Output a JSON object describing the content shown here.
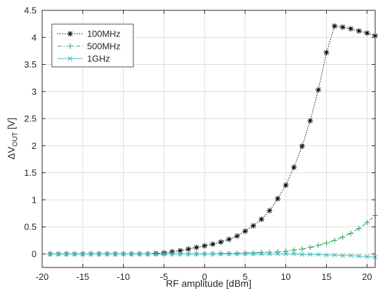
{
  "chart_data": {
    "type": "line",
    "xlabel": "RF amplitude [dBm]",
    "ylabel": {
      "prefix": "ΔV",
      "sub": "OUT",
      "suffix": " [V]"
    },
    "xlim": [
      -20,
      21
    ],
    "ylim": [
      -0.25,
      4.5
    ],
    "xticks": [
      -20,
      -15,
      -10,
      -5,
      0,
      5,
      10,
      15,
      20
    ],
    "yticks": [
      0,
      0.5,
      1,
      1.5,
      2,
      2.5,
      3,
      3.5,
      4,
      4.5
    ],
    "grid": true,
    "legend_position": "top-left",
    "x": [
      -19,
      -18,
      -17,
      -16,
      -15,
      -14,
      -13,
      -12,
      -11,
      -10,
      -9,
      -8,
      -7,
      -6,
      -5,
      -4,
      -3,
      -2,
      -1,
      0,
      1,
      2,
      3,
      4,
      5,
      6,
      7,
      8,
      9,
      10,
      11,
      12,
      13,
      14,
      15,
      16,
      17,
      18,
      19,
      20,
      21
    ],
    "series": [
      {
        "name": "100MHz",
        "color": "#000000",
        "marker": "asterisk",
        "line_style": "dotted",
        "values": [
          0,
          0,
          0,
          0,
          0,
          0,
          0,
          0,
          0,
          0,
          0,
          0,
          0,
          0.01,
          0.02,
          0.04,
          0.06,
          0.09,
          0.12,
          0.15,
          0.18,
          0.22,
          0.27,
          0.33,
          0.42,
          0.52,
          0.64,
          0.8,
          1.02,
          1.27,
          1.6,
          1.99,
          2.46,
          3.03,
          3.72,
          4.21,
          4.19,
          4.16,
          4.12,
          4.08,
          4.03
        ]
      },
      {
        "name": "500MHz",
        "color": "#2ca05a",
        "marker": "plus",
        "line_style": "dashdot",
        "values": [
          0,
          0,
          0,
          0,
          0,
          0,
          0,
          0,
          0,
          0,
          0,
          0,
          0,
          0,
          0,
          0,
          0,
          0,
          0,
          0,
          0,
          0.01,
          0.01,
          0.01,
          0.02,
          0.02,
          0.03,
          0.03,
          0.04,
          0.05,
          0.07,
          0.09,
          0.12,
          0.16,
          0.2,
          0.25,
          0.31,
          0.38,
          0.47,
          0.58,
          0.71
        ]
      },
      {
        "name": "1GHz",
        "color": "#3cb8c0",
        "marker": "cross",
        "line_style": "solid",
        "values": [
          0,
          0,
          0,
          0,
          0,
          0,
          0,
          0,
          0,
          0,
          0,
          0,
          0,
          0,
          0,
          0,
          0,
          0,
          0,
          0,
          0,
          0,
          0,
          0,
          0,
          0,
          0,
          0,
          0,
          0,
          0,
          -0.01,
          -0.01,
          -0.01,
          -0.02,
          -0.02,
          -0.03,
          -0.03,
          -0.04,
          -0.05,
          -0.06
        ]
      }
    ]
  }
}
